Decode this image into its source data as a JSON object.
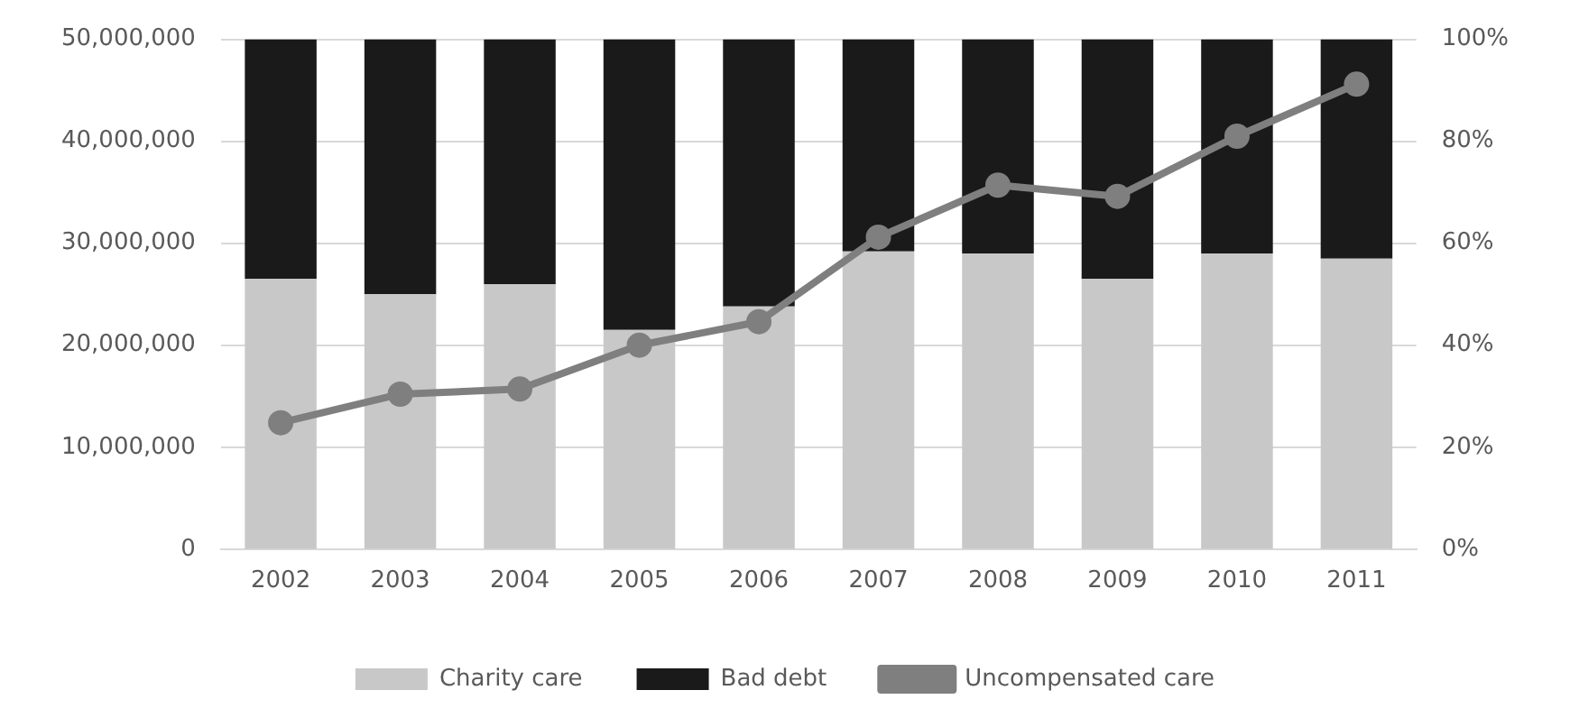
{
  "chart_data": {
    "type": "bar",
    "stacked": true,
    "categories": [
      "2002",
      "2003",
      "2004",
      "2005",
      "2006",
      "2007",
      "2008",
      "2009",
      "2010",
      "2011"
    ],
    "series": [
      {
        "name": "Charity care",
        "axis": "y2",
        "color": "#c8c8c8",
        "values": [
          53,
          50,
          52,
          43,
          47.6,
          58.4,
          58,
          53,
          58,
          57
        ]
      },
      {
        "name": "Bad debt",
        "axis": "y2",
        "color": "#1a1a1a",
        "values": [
          47,
          50,
          48,
          57,
          52.4,
          41.6,
          42,
          47,
          42,
          43
        ]
      },
      {
        "name": "Uncompensated care",
        "type": "line",
        "axis": "y",
        "color": "#7f7f7f",
        "marker": "circle",
        "values": [
          12400000,
          15200000,
          15700000,
          20000000,
          22300000,
          30600000,
          35700000,
          34600000,
          40500000,
          45600000
        ]
      }
    ],
    "ylim": [
      0,
      50000000
    ],
    "yticks": [
      0,
      {
        "value": 10000000,
        "label": "10,000,000"
      },
      {
        "value": 20000000,
        "label": "20,000,000"
      },
      {
        "value": 30000000,
        "label": "30,000,000"
      },
      {
        "value": 40000000,
        "label": "40,000,000"
      },
      {
        "value": 50000000,
        "label": "50,000,000"
      }
    ],
    "y2lim": [
      0,
      100
    ],
    "y2ticks": [
      {
        "value": 0,
        "label": "0%"
      },
      {
        "value": 20,
        "label": "20%"
      },
      {
        "value": 40,
        "label": "40%"
      },
      {
        "value": 60,
        "label": "60%"
      },
      {
        "value": 80,
        "label": "80%"
      },
      {
        "value": 100,
        "label": "100%"
      }
    ],
    "grid": "y",
    "legend": "bottom"
  }
}
